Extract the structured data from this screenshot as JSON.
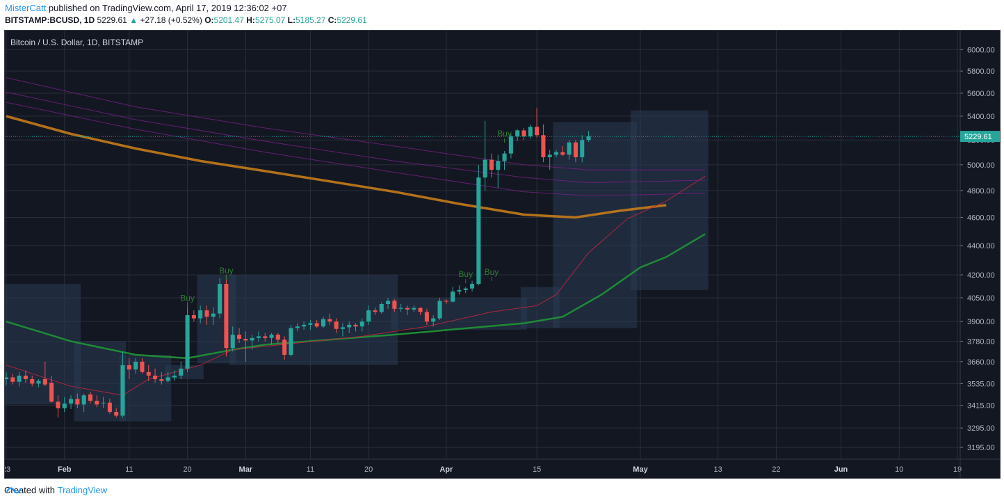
{
  "header": {
    "author": "MisterCatt",
    "published_text": "published on TradingView.com, April 17, 2019 12:36:02 +07",
    "symbol": "BITSTAMP:BCUSD",
    "interval": "1D",
    "last": "5229.61",
    "change": "+27.18 (+0.52%)",
    "o_label": "O:",
    "o_value": "5201.47",
    "h_label": "H:",
    "h_value": "5275.07",
    "l_label": "L:",
    "l_value": "5185.27",
    "c_label": "C:",
    "c_value": "5229.61"
  },
  "footer": {
    "created_with": "Created with",
    "brand": "TradingView"
  },
  "colors": {
    "background": "#131722",
    "grid": "#2a2e39",
    "up": "#26a69a",
    "down": "#ef5350",
    "ma200": "#c77b1a",
    "ma50": "#1f8b35",
    "ma20": "#b2263b",
    "cloud": "#2a3a54",
    "band": "#7b1f86",
    "buy": "#2e7d32"
  },
  "chart_data": {
    "type": "candlestick",
    "title": "Bitcoin / U.S. Dollar, 1D, BITSTAMP",
    "scale": "log",
    "ylim": [
      3150,
      6150
    ],
    "y_ticks": [
      "6000.00",
      "5800.00",
      "5600.00",
      "5400.00",
      "5200.00",
      "5000.00",
      "4800.00",
      "4600.00",
      "4400.00",
      "4200.00",
      "4050.00",
      "3900.00",
      "3780.00",
      "3660.00",
      "3535.00",
      "3415.00",
      "3295.00",
      "3195.00"
    ],
    "x_ticks": [
      "23",
      "Feb",
      "11",
      "20",
      "Mar",
      "11",
      "20",
      "Apr",
      "15",
      "May",
      "13",
      "22",
      "Jun",
      "10",
      "19"
    ],
    "x_tick_dates": [
      "2019-01-23",
      "2019-02-01",
      "2019-02-11",
      "2019-02-20",
      "2019-03-01",
      "2019-03-11",
      "2019-03-20",
      "2019-04-01",
      "2019-04-15",
      "2019-05-01",
      "2019-05-13",
      "2019-05-22",
      "2019-06-01",
      "2019-06-10",
      "2019-06-19"
    ],
    "x_range": [
      "2019-01-23",
      "2019-06-19"
    ],
    "last_price_label": "5229.61",
    "last_price": 5229.61,
    "candles": {
      "start_date": "2019-01-23",
      "ohlc": [
        [
          3560,
          3600,
          3525,
          3570
        ],
        [
          3570,
          3590,
          3530,
          3545
        ],
        [
          3545,
          3600,
          3520,
          3580
        ],
        [
          3580,
          3610,
          3540,
          3560
        ],
        [
          3560,
          3580,
          3520,
          3535
        ],
        [
          3535,
          3560,
          3515,
          3550
        ],
        [
          3560,
          3660,
          3520,
          3530
        ],
        [
          3540,
          3580,
          3430,
          3435
        ],
        [
          3435,
          3470,
          3350,
          3400
        ],
        [
          3400,
          3460,
          3380,
          3425
        ],
        [
          3425,
          3470,
          3395,
          3450
        ],
        [
          3450,
          3480,
          3400,
          3420
        ],
        [
          3420,
          3480,
          3380,
          3470
        ],
        [
          3475,
          3490,
          3425,
          3440
        ],
        [
          3440,
          3470,
          3405,
          3420
        ],
        [
          3430,
          3460,
          3400,
          3430
        ],
        [
          3430,
          3450,
          3370,
          3380
        ],
        [
          3380,
          3400,
          3350,
          3360
        ],
        [
          3360,
          3720,
          3350,
          3640
        ],
        [
          3640,
          3680,
          3560,
          3615
        ],
        [
          3615,
          3680,
          3590,
          3660
        ],
        [
          3660,
          3680,
          3590,
          3600
        ],
        [
          3600,
          3640,
          3550,
          3580
        ],
        [
          3580,
          3620,
          3540,
          3560
        ],
        [
          3560,
          3600,
          3530,
          3550
        ],
        [
          3550,
          3600,
          3540,
          3570
        ],
        [
          3570,
          3610,
          3550,
          3580
        ],
        [
          3580,
          3660,
          3560,
          3620
        ],
        [
          3620,
          4020,
          3600,
          3940
        ],
        [
          3940,
          3970,
          3900,
          3920
        ],
        [
          3920,
          4000,
          3890,
          3970
        ],
        [
          3970,
          4000,
          3880,
          3930
        ],
        [
          3930,
          3990,
          3880,
          3950
        ],
        [
          3950,
          4180,
          3920,
          4140
        ],
        [
          4140,
          4200,
          3690,
          3740
        ],
        [
          3740,
          3870,
          3720,
          3820
        ],
        [
          3820,
          3860,
          3770,
          3795
        ],
        [
          3795,
          3840,
          3660,
          3785
        ],
        [
          3785,
          3820,
          3730,
          3800
        ],
        [
          3800,
          3840,
          3780,
          3810
        ],
        [
          3810,
          3830,
          3780,
          3800
        ],
        [
          3800,
          3830,
          3760,
          3820
        ],
        [
          3820,
          3830,
          3770,
          3790
        ],
        [
          3790,
          3810,
          3670,
          3700
        ],
        [
          3700,
          3880,
          3690,
          3860
        ],
        [
          3860,
          3890,
          3840,
          3870
        ],
        [
          3870,
          3900,
          3850,
          3880
        ],
        [
          3880,
          3910,
          3850,
          3890
        ],
        [
          3890,
          3910,
          3860,
          3870
        ],
        [
          3870,
          3930,
          3860,
          3915
        ],
        [
          3915,
          3950,
          3880,
          3900
        ],
        [
          3900,
          3920,
          3830,
          3855
        ],
        [
          3855,
          3890,
          3810,
          3865
        ],
        [
          3865,
          3900,
          3830,
          3880
        ],
        [
          3880,
          3890,
          3840,
          3870
        ],
        [
          3870,
          3920,
          3840,
          3900
        ],
        [
          3900,
          4000,
          3880,
          3970
        ],
        [
          3970,
          3990,
          3940,
          3960
        ],
        [
          3960,
          4020,
          3950,
          4010
        ],
        [
          4010,
          4050,
          3980,
          4030
        ],
        [
          4030,
          4040,
          3960,
          3980
        ],
        [
          3980,
          4010,
          3960,
          3985
        ],
        [
          3985,
          4000,
          3940,
          3975
        ],
        [
          3975,
          4000,
          3960,
          3985
        ],
        [
          3985,
          3990,
          3940,
          3960
        ],
        [
          3960,
          3980,
          3880,
          3900
        ],
        [
          3900,
          3940,
          3870,
          3920
        ],
        [
          3920,
          4050,
          3910,
          4030
        ],
        [
          4030,
          4040,
          4010,
          4025
        ],
        [
          4025,
          4120,
          4020,
          4090
        ],
        [
          4090,
          4130,
          4070,
          4100
        ],
        [
          4100,
          4120,
          4080,
          4110
        ],
        [
          4110,
          4160,
          4090,
          4140
        ],
        [
          4140,
          5000,
          4130,
          4900
        ],
        [
          4900,
          5360,
          4800,
          5040
        ],
        [
          5040,
          5090,
          4900,
          4960
        ],
        [
          4960,
          5080,
          4820,
          5030
        ],
        [
          5030,
          5110,
          4960,
          5090
        ],
        [
          5090,
          5250,
          5050,
          5230
        ],
        [
          5230,
          5290,
          5190,
          5280
        ],
        [
          5280,
          5300,
          5200,
          5230
        ],
        [
          5230,
          5330,
          5210,
          5310
        ],
        [
          5310,
          5470,
          5220,
          5240
        ],
        [
          5240,
          5330,
          5020,
          5060
        ],
        [
          5060,
          5120,
          4960,
          5080
        ],
        [
          5080,
          5120,
          5060,
          5100
        ],
        [
          5100,
          5150,
          5070,
          5080
        ],
        [
          5080,
          5200,
          5040,
          5180
        ],
        [
          5180,
          5200,
          5020,
          5060
        ],
        [
          5060,
          5240,
          5020,
          5200
        ],
        [
          5200,
          5275,
          5185,
          5230
        ]
      ]
    },
    "series": [
      {
        "name": "MA 200",
        "points": [
          [
            0,
            5400
          ],
          [
            10,
            5250
          ],
          [
            20,
            5130
          ],
          [
            30,
            5030
          ],
          [
            40,
            4950
          ],
          [
            50,
            4870
          ],
          [
            60,
            4790
          ],
          [
            70,
            4700
          ],
          [
            80,
            4620
          ],
          [
            88,
            4600
          ],
          [
            95,
            4650
          ],
          [
            102,
            4690
          ]
        ]
      },
      {
        "name": "MA 50",
        "points": [
          [
            0,
            3900
          ],
          [
            10,
            3780
          ],
          [
            20,
            3700
          ],
          [
            28,
            3680
          ],
          [
            35,
            3730
          ],
          [
            40,
            3760
          ],
          [
            50,
            3790
          ],
          [
            60,
            3820
          ],
          [
            70,
            3855
          ],
          [
            80,
            3890
          ],
          [
            86,
            3930
          ],
          [
            92,
            4070
          ],
          [
            98,
            4250
          ],
          [
            102,
            4320
          ],
          [
            108,
            4480
          ]
        ]
      },
      {
        "name": "MA 20",
        "points": [
          [
            0,
            3640
          ],
          [
            10,
            3520
          ],
          [
            18,
            3470
          ],
          [
            22,
            3560
          ],
          [
            30,
            3640
          ],
          [
            35,
            3730
          ],
          [
            45,
            3770
          ],
          [
            55,
            3810
          ],
          [
            65,
            3870
          ],
          [
            75,
            3960
          ],
          [
            82,
            4000
          ],
          [
            85,
            4070
          ],
          [
            90,
            4350
          ],
          [
            96,
            4590
          ],
          [
            102,
            4720
          ],
          [
            108,
            4910
          ]
        ]
      },
      {
        "name": "Band 1",
        "points": [
          [
            0,
            5740
          ],
          [
            20,
            5480
          ],
          [
            40,
            5300
          ],
          [
            60,
            5150
          ],
          [
            80,
            5000
          ],
          [
            90,
            4960
          ],
          [
            100,
            4960
          ],
          [
            108,
            4960
          ]
        ]
      },
      {
        "name": "Band 2",
        "points": [
          [
            0,
            5610
          ],
          [
            20,
            5370
          ],
          [
            40,
            5190
          ],
          [
            60,
            5030
          ],
          [
            80,
            4900
          ],
          [
            90,
            4860
          ],
          [
            100,
            4870
          ],
          [
            108,
            4880
          ]
        ]
      },
      {
        "name": "Band 3",
        "points": [
          [
            0,
            5520
          ],
          [
            20,
            5290
          ],
          [
            40,
            5100
          ],
          [
            60,
            4940
          ],
          [
            80,
            4790
          ],
          [
            90,
            4760
          ],
          [
            100,
            4770
          ],
          [
            108,
            4780
          ]
        ]
      }
    ],
    "cloud_bands": [
      {
        "from": 0,
        "to": 11,
        "top": 4140,
        "bottom": 3420
      },
      {
        "from": 11,
        "to": 18,
        "top": 3780,
        "bottom": 3330
      },
      {
        "from": 18,
        "to": 25,
        "top": 3700,
        "bottom": 3330
      },
      {
        "from": 25,
        "to": 30,
        "top": 3640,
        "bottom": 3560
      },
      {
        "from": 30,
        "to": 35,
        "top": 4200,
        "bottom": 3650
      },
      {
        "from": 35,
        "to": 60,
        "top": 4200,
        "bottom": 3640
      },
      {
        "from": 60,
        "to": 80,
        "top": 4050,
        "bottom": 3850
      },
      {
        "from": 80,
        "to": 85,
        "top": 4120,
        "bottom": 3860
      },
      {
        "from": 85,
        "to": 97,
        "top": 5350,
        "bottom": 3860
      },
      {
        "from": 97,
        "to": 108,
        "top": 5450,
        "bottom": 4100
      }
    ],
    "annotations": [
      {
        "text": "Buy",
        "index": 34,
        "price": 4210
      },
      {
        "text": "Buy",
        "index": 28,
        "price": 4030
      },
      {
        "text": "Buy",
        "index": 71,
        "price": 4185
      },
      {
        "text": "Buy",
        "index": 75,
        "price": 4200
      },
      {
        "text": "Buy",
        "index": 77,
        "price": 5230
      }
    ]
  }
}
